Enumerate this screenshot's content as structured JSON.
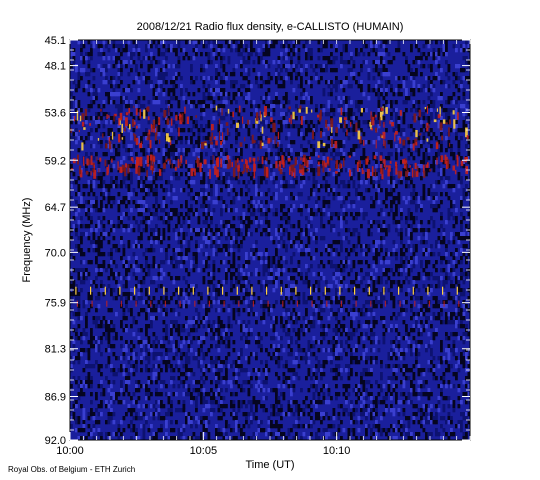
{
  "chart_data": {
    "type": "heatmap",
    "title": "2008/12/21  Radio flux density, e-CALLISTO (HUMAIN)",
    "xlabel": "Time (UT)",
    "ylabel": "Frequency (MHz)",
    "x_ticks": [
      "10:00",
      "10:05",
      "10:10"
    ],
    "y_ticks": [
      "45.1",
      "48.1",
      "53.6",
      "59.2",
      "64.7",
      "70.0",
      "75.9",
      "81.3",
      "86.9",
      "92.0"
    ],
    "ylim": [
      45.1,
      92.0
    ],
    "x_range_minutes": [
      0,
      15
    ],
    "colors": {
      "background": "#1a1f9c",
      "dark": "#050520",
      "hot": "#c8201a",
      "bright": "#ffd040"
    },
    "features": [
      {
        "kind": "emission_band",
        "freq_center": 55.0,
        "freq_width": 4.5,
        "intensity": "strong"
      },
      {
        "kind": "emission_band",
        "freq_center": 59.5,
        "freq_width": 2.0,
        "intensity": "medium"
      },
      {
        "kind": "periodic_spikes",
        "freq_center": 74.5,
        "period_minutes": 0.55
      }
    ]
  },
  "footer": "Royal Obs. of Belgium - ETH Zurich"
}
